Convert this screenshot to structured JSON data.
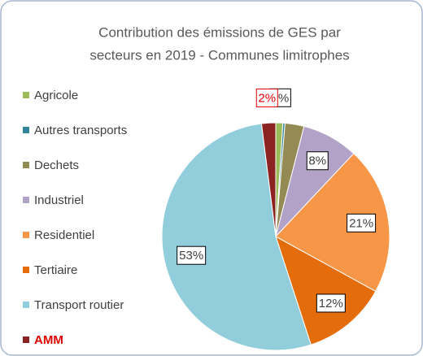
{
  "chart_data": {
    "type": "pie",
    "title": [
      "Contribution des émissions de GES par",
      "secteurs en 2019 - Communes limitrophes"
    ],
    "categories": [
      "Agricole",
      "Autres transports",
      "Dechets",
      "Industriel",
      "Residentiel",
      "Tertiaire",
      "Transport routier",
      "AMM"
    ],
    "values": [
      1,
      0.3,
      2.7,
      8,
      21,
      12,
      53,
      2
    ],
    "value_labels": [
      "1%",
      null,
      null,
      "8%",
      "21%",
      "12%",
      "53%",
      "2%"
    ],
    "colors": [
      "#9bbb59",
      "#31849b",
      "#948a54",
      "#b3a2c7",
      "#f79646",
      "#e46c0a",
      "#92cddc",
      "#8b2323"
    ],
    "highlight": "AMM",
    "highlight_color": "#e00000",
    "legend": "left"
  }
}
